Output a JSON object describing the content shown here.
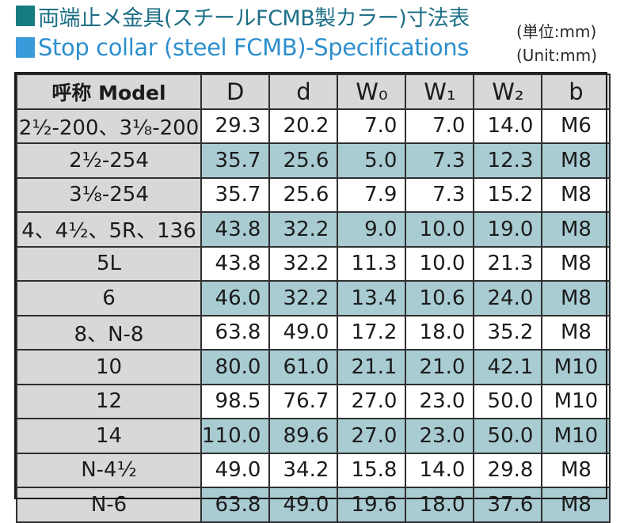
{
  "title_ja": "両端止メ金具(スチールFCMB製カラー)寸法表",
  "title_en": "Stop collar (steel FCMB)-Specifications",
  "unit_ja": "(単位:mm)",
  "unit_en": "(Unit:mm)",
  "colors": {
    "row_highlight": "#a9ccd3",
    "name_column": "#d8d8d8",
    "title_ja": "#1e6f86",
    "title_en": "#2d8fce"
  },
  "table": {
    "headers": [
      "呼称 Model",
      "D",
      "d",
      "W₀",
      "W₁",
      "W₂",
      "b"
    ],
    "rows": [
      [
        "2½-200、3⅛-200",
        "29.3",
        "20.2",
        "7.0",
        "7.0",
        "14.0",
        "M6"
      ],
      [
        "2½-254",
        "35.7",
        "25.6",
        "5.0",
        "7.3",
        "12.3",
        "M8"
      ],
      [
        "3⅛-254",
        "35.7",
        "25.6",
        "7.9",
        "7.3",
        "15.2",
        "M8"
      ],
      [
        "4、4½、5R、136",
        "43.8",
        "32.2",
        "9.0",
        "10.0",
        "19.0",
        "M8"
      ],
      [
        "5L",
        "43.8",
        "32.2",
        "11.3",
        "10.0",
        "21.3",
        "M8"
      ],
      [
        "6",
        "46.0",
        "32.2",
        "13.4",
        "10.6",
        "24.0",
        "M8"
      ],
      [
        "8、N-8",
        "63.8",
        "49.0",
        "17.2",
        "18.0",
        "35.2",
        "M8"
      ],
      [
        "10",
        "80.0",
        "61.0",
        "21.1",
        "21.0",
        "42.1",
        "M10"
      ],
      [
        "12",
        "98.5",
        "76.7",
        "27.0",
        "23.0",
        "50.0",
        "M10"
      ],
      [
        "14",
        "110.0",
        "89.6",
        "27.0",
        "23.0",
        "50.0",
        "M10"
      ],
      [
        "N-4½",
        "49.0",
        "34.2",
        "15.8",
        "14.0",
        "29.8",
        "M8"
      ],
      [
        "N-6",
        "63.8",
        "49.0",
        "19.6",
        "18.0",
        "37.6",
        "M8"
      ]
    ]
  }
}
